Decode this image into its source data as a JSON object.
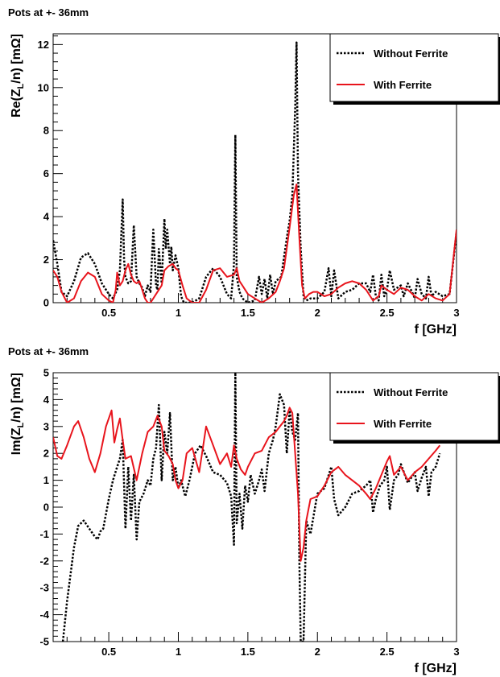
{
  "chart_data": [
    {
      "type": "line",
      "title": "Pots at +- 36mm",
      "xlabel": "f [GHz]",
      "ylabel": "Re(Z_L/n) [mΩ]",
      "ylabel_parts": {
        "pre": "Re(Z",
        "sub": "L",
        "post": "/n) [mΩ]"
      },
      "xlim": [
        0.1,
        3.0
      ],
      "ylim": [
        0,
        12.5
      ],
      "grid": false,
      "legend_position": "top-right",
      "x_ticks": [
        0.5,
        1,
        1.5,
        2,
        2.5,
        3
      ],
      "x_tick_labels": [
        "0.5",
        "1",
        "1.5",
        "2",
        "2.5",
        "3"
      ],
      "y_ticks": [
        0,
        2,
        4,
        6,
        8,
        10,
        12
      ],
      "y_tick_labels": [
        "0",
        "2",
        "4",
        "6",
        "8",
        "10",
        "12"
      ],
      "series": [
        {
          "name": "Without Ferrite",
          "color": "#000000",
          "style": "dotted",
          "x": [
            0.1,
            0.13,
            0.16,
            0.2,
            0.25,
            0.3,
            0.35,
            0.4,
            0.45,
            0.5,
            0.53,
            0.56,
            0.58,
            0.6,
            0.61,
            0.62,
            0.64,
            0.66,
            0.68,
            0.7,
            0.72,
            0.74,
            0.76,
            0.78,
            0.8,
            0.82,
            0.84,
            0.85,
            0.86,
            0.88,
            0.9,
            0.91,
            0.92,
            0.94,
            0.95,
            0.96,
            0.98,
            1.0,
            1.02,
            1.04,
            1.06,
            1.08,
            1.1,
            1.15,
            1.2,
            1.25,
            1.3,
            1.35,
            1.38,
            1.4,
            1.41,
            1.42,
            1.44,
            1.46,
            1.5,
            1.55,
            1.58,
            1.6,
            1.62,
            1.64,
            1.66,
            1.68,
            1.7,
            1.74,
            1.78,
            1.8,
            1.82,
            1.84,
            1.85,
            1.86,
            1.88,
            1.9,
            1.92,
            1.95,
            2.0,
            2.05,
            2.08,
            2.1,
            2.12,
            2.15,
            2.2,
            2.25,
            2.3,
            2.35,
            2.38,
            2.4,
            2.42,
            2.44,
            2.46,
            2.48,
            2.5,
            2.52,
            2.55,
            2.6,
            2.62,
            2.65,
            2.68,
            2.7,
            2.72,
            2.75,
            2.78,
            2.8,
            2.82,
            2.85,
            2.9,
            2.95,
            3.0
          ],
          "y": [
            2.9,
            1.8,
            0.5,
            0.3,
            1.0,
            2.1,
            2.3,
            1.8,
            0.9,
            0.4,
            0.2,
            0.6,
            1.5,
            4.8,
            2.0,
            1.2,
            0.9,
            1.0,
            3.6,
            1.2,
            0.9,
            0.7,
            0.3,
            0.8,
            0.5,
            3.4,
            0.8,
            0.6,
            2.5,
            0.9,
            3.9,
            2.5,
            3.4,
            1.8,
            2.6,
            1.5,
            2.2,
            1.6,
            0.3,
            0.0,
            0.0,
            0.0,
            0.0,
            0.2,
            1.2,
            1.6,
            1.2,
            0.4,
            0.2,
            1.8,
            7.8,
            1.2,
            0.5,
            0.2,
            0.0,
            0.1,
            1.2,
            0.4,
            1.1,
            0.2,
            1.3,
            0.4,
            1.0,
            1.2,
            3.0,
            3.8,
            5.0,
            9.0,
            12.1,
            6.0,
            2.5,
            0.3,
            0.1,
            0.2,
            0.2,
            0.5,
            1.6,
            0.3,
            1.5,
            0.2,
            0.5,
            0.6,
            0.9,
            0.9,
            0.5,
            1.3,
            0.3,
            0.1,
            1.3,
            0.3,
            0.6,
            1.5,
            0.6,
            0.8,
            0.3,
            0.9,
            0.5,
            0.2,
            1.1,
            0.4,
            0.2,
            1.2,
            0.3,
            0.5,
            0.3,
            0.4,
            3.3
          ]
        },
        {
          "name": "With Ferrite",
          "color": "#e8141c",
          "style": "solid",
          "x": [
            0.1,
            0.13,
            0.16,
            0.2,
            0.25,
            0.3,
            0.35,
            0.4,
            0.45,
            0.5,
            0.53,
            0.55,
            0.56,
            0.58,
            0.6,
            0.62,
            0.64,
            0.66,
            0.68,
            0.7,
            0.72,
            0.74,
            0.76,
            0.78,
            0.8,
            0.82,
            0.85,
            0.88,
            0.9,
            0.93,
            0.96,
            0.98,
            1.0,
            1.03,
            1.06,
            1.1,
            1.15,
            1.2,
            1.25,
            1.3,
            1.35,
            1.4,
            1.42,
            1.44,
            1.46,
            1.5,
            1.55,
            1.6,
            1.65,
            1.7,
            1.73,
            1.76,
            1.8,
            1.83,
            1.85,
            1.87,
            1.89,
            1.91,
            1.94,
            1.97,
            2.0,
            2.05,
            2.1,
            2.15,
            2.2,
            2.25,
            2.3,
            2.35,
            2.4,
            2.44,
            2.46,
            2.5,
            2.55,
            2.6,
            2.65,
            2.7,
            2.75,
            2.8,
            2.85,
            2.9,
            2.95,
            3.0
          ],
          "y": [
            1.5,
            1.2,
            0.5,
            0.0,
            0.2,
            1.0,
            1.4,
            1.2,
            0.4,
            0.1,
            0.0,
            0.6,
            1.4,
            0.8,
            1.0,
            1.5,
            1.8,
            1.3,
            1.0,
            0.9,
            1.0,
            0.6,
            0.2,
            0.0,
            0.0,
            0.2,
            0.5,
            0.8,
            1.5,
            1.7,
            1.8,
            1.6,
            1.5,
            0.8,
            0.2,
            0.0,
            0.0,
            0.6,
            1.5,
            1.6,
            1.2,
            1.3,
            1.6,
            1.0,
            0.8,
            0.4,
            0.2,
            0.0,
            0.2,
            0.5,
            1.0,
            1.6,
            3.5,
            5.0,
            5.5,
            3.0,
            0.8,
            0.2,
            0.4,
            0.5,
            0.5,
            0.3,
            0.4,
            0.7,
            0.9,
            1.0,
            0.9,
            0.6,
            0.1,
            0.3,
            0.8,
            0.6,
            0.4,
            0.7,
            0.6,
            0.3,
            0.1,
            0.4,
            0.2,
            0.1,
            0.4,
            3.4
          ]
        }
      ]
    },
    {
      "type": "line",
      "title": "Pots at +- 36mm",
      "xlabel": "f [GHz]",
      "ylabel": "Im(Z_L/n) [mΩ]",
      "ylabel_parts": {
        "pre": "Im(Z",
        "sub": "L",
        "post": "/n) [mΩ]"
      },
      "xlim": [
        0.1,
        3.0
      ],
      "ylim": [
        -5,
        5
      ],
      "grid": false,
      "legend_position": "top-right",
      "x_ticks": [
        0.5,
        1,
        1.5,
        2,
        2.5,
        3
      ],
      "x_tick_labels": [
        "0.5",
        "1",
        "1.5",
        "2",
        "2.5",
        "3"
      ],
      "y_ticks": [
        -5,
        -4,
        -3,
        -2,
        -1,
        0,
        1,
        2,
        3,
        4,
        5
      ],
      "y_tick_labels": [
        "-5",
        "-4",
        "-3",
        "-2",
        "-1",
        "0",
        "1",
        "2",
        "3",
        "4",
        "5"
      ],
      "series": [
        {
          "name": "Without Ferrite",
          "color": "#000000",
          "style": "dotted",
          "x": [
            0.17,
            0.2,
            0.25,
            0.28,
            0.32,
            0.36,
            0.4,
            0.42,
            0.44,
            0.46,
            0.5,
            0.53,
            0.56,
            0.58,
            0.6,
            0.62,
            0.64,
            0.66,
            0.68,
            0.7,
            0.72,
            0.75,
            0.78,
            0.8,
            0.82,
            0.84,
            0.86,
            0.88,
            0.9,
            0.92,
            0.94,
            0.96,
            0.98,
            1.0,
            1.02,
            1.05,
            1.08,
            1.12,
            1.16,
            1.2,
            1.25,
            1.3,
            1.35,
            1.38,
            1.4,
            1.41,
            1.42,
            1.44,
            1.46,
            1.48,
            1.5,
            1.52,
            1.55,
            1.58,
            1.6,
            1.62,
            1.65,
            1.68,
            1.7,
            1.73,
            1.76,
            1.78,
            1.8,
            1.82,
            1.84,
            1.86,
            1.87,
            1.88,
            1.9,
            1.92,
            1.95,
            2.0,
            2.05,
            2.1,
            2.12,
            2.15,
            2.2,
            2.25,
            2.3,
            2.35,
            2.38,
            2.4,
            2.42,
            2.45,
            2.48,
            2.5,
            2.52,
            2.55,
            2.58,
            2.6,
            2.65,
            2.7,
            2.72,
            2.75,
            2.78,
            2.8,
            2.82,
            2.85,
            2.88
          ],
          "y": [
            -5.0,
            -3.5,
            -1.5,
            -0.7,
            -0.5,
            -0.8,
            -1.1,
            -1.2,
            -0.9,
            -0.8,
            0.3,
            1.0,
            1.5,
            1.8,
            2.5,
            -0.8,
            1.5,
            -0.5,
            1.2,
            -1.2,
            0.2,
            0.5,
            1.0,
            0.8,
            1.8,
            2.2,
            3.8,
            1.0,
            2.8,
            2.0,
            3.5,
            1.0,
            1.5,
            0.7,
            1.0,
            0.4,
            1.0,
            2.0,
            2.3,
            1.9,
            1.3,
            1.2,
            0.9,
            0.4,
            -1.4,
            5.0,
            -0.6,
            0.5,
            -0.8,
            0.8,
            0.2,
            1.2,
            0.5,
            1.0,
            1.4,
            0.6,
            2.0,
            2.5,
            3.0,
            4.2,
            3.8,
            2.0,
            3.6,
            2.8,
            2.5,
            3.5,
            -2.0,
            -5.0,
            -5.0,
            -0.5,
            -1.0,
            0.5,
            0.7,
            1.5,
            0.3,
            -0.3,
            0.0,
            0.5,
            0.6,
            0.8,
            1.0,
            -0.2,
            0.3,
            0.8,
            1.0,
            1.5,
            -0.1,
            1.0,
            1.2,
            1.6,
            0.9,
            1.3,
            0.6,
            1.1,
            1.5,
            0.4,
            1.3,
            1.5,
            2.0
          ]
        },
        {
          "name": "With Ferrite",
          "color": "#e8141c",
          "style": "solid",
          "x": [
            0.1,
            0.13,
            0.16,
            0.2,
            0.25,
            0.28,
            0.32,
            0.36,
            0.4,
            0.44,
            0.48,
            0.52,
            0.54,
            0.56,
            0.58,
            0.6,
            0.62,
            0.66,
            0.7,
            0.74,
            0.78,
            0.82,
            0.85,
            0.88,
            0.9,
            0.93,
            0.96,
            0.98,
            1.0,
            1.03,
            1.06,
            1.1,
            1.15,
            1.2,
            1.25,
            1.3,
            1.35,
            1.38,
            1.4,
            1.42,
            1.45,
            1.48,
            1.5,
            1.55,
            1.6,
            1.65,
            1.7,
            1.73,
            1.76,
            1.78,
            1.8,
            1.82,
            1.84,
            1.86,
            1.88,
            1.9,
            1.92,
            1.95,
            2.0,
            2.05,
            2.1,
            2.15,
            2.2,
            2.25,
            2.3,
            2.35,
            2.38,
            2.42,
            2.46,
            2.5,
            2.52,
            2.55,
            2.6,
            2.65,
            2.7,
            2.75,
            2.8,
            2.85,
            2.88
          ],
          "y": [
            2.6,
            1.9,
            1.8,
            2.3,
            3.0,
            3.2,
            2.6,
            1.8,
            1.3,
            2.0,
            3.0,
            3.6,
            2.4,
            2.9,
            3.3,
            2.5,
            1.8,
            1.9,
            1.0,
            2.0,
            2.8,
            3.0,
            3.4,
            3.0,
            2.1,
            1.9,
            1.6,
            1.0,
            0.7,
            1.0,
            2.0,
            2.2,
            1.3,
            3.0,
            2.3,
            1.6,
            2.0,
            1.5,
            2.3,
            1.8,
            1.4,
            1.2,
            1.5,
            2.0,
            2.1,
            2.6,
            2.8,
            3.0,
            3.2,
            3.4,
            3.7,
            3.5,
            2.0,
            0.5,
            -2.0,
            -1.5,
            -0.5,
            0.3,
            0.4,
            0.8,
            1.3,
            1.5,
            1.2,
            1.0,
            0.8,
            0.5,
            0.3,
            0.7,
            1.2,
            1.7,
            1.9,
            1.2,
            1.5,
            1.0,
            1.3,
            1.5,
            1.8,
            2.1,
            2.3
          ]
        }
      ]
    }
  ]
}
